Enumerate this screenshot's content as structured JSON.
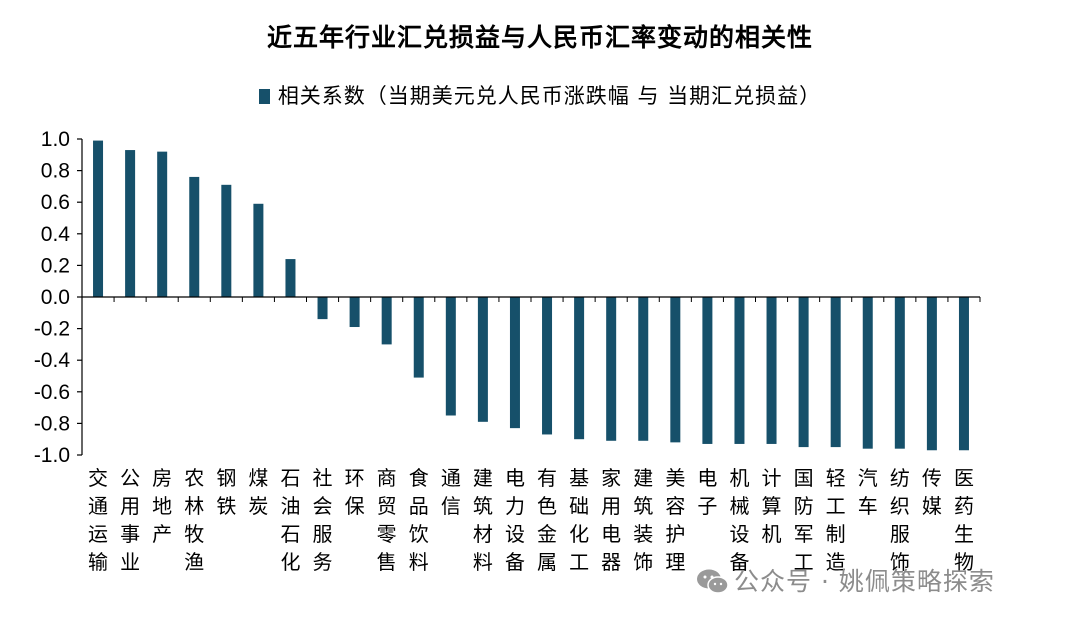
{
  "chart_data": {
    "type": "bar",
    "title": "近五年行业汇兑损益与人民币汇率变动的相关性",
    "legend_position": "top",
    "series": [
      {
        "name": "相关系数（当期美元兑人民币涨跌幅 与 当期汇兑损益）",
        "color": "#16506a",
        "values": [
          0.99,
          0.93,
          0.92,
          0.76,
          0.71,
          0.59,
          0.24,
          -0.14,
          -0.19,
          -0.3,
          -0.51,
          -0.75,
          -0.79,
          -0.83,
          -0.87,
          -0.9,
          -0.91,
          -0.91,
          -0.92,
          -0.93,
          -0.93,
          -0.93,
          -0.95,
          -0.95,
          -0.96,
          -0.96,
          -0.97,
          -0.97
        ]
      }
    ],
    "categories": [
      "交通运输",
      "公用事业",
      "房地产",
      "农林牧渔",
      "钢铁",
      "煤炭",
      "石油石化",
      "社会服务",
      "环保",
      "商贸零售",
      "食品饮料",
      "通信",
      "建筑材料",
      "电力设备",
      "有色金属",
      "基础化工",
      "家用电器",
      "建筑装饰",
      "美容护理",
      "电子",
      "机械设备",
      "计算机",
      "国防军工",
      "轻工制造",
      "汽车",
      "纺织服饰",
      "传媒",
      "医药生物"
    ],
    "yticks": [
      "1.0",
      "0.8",
      "0.6",
      "0.4",
      "0.2",
      "0.0",
      "-0.2",
      "-0.4",
      "-0.6",
      "-0.8",
      "-1.0"
    ],
    "ylim": [
      -1.0,
      1.0
    ],
    "xlabel": "",
    "ylabel": "",
    "grid": false
  },
  "watermark": {
    "text": "公众号 · 姚佩策略探索",
    "icon": "wechat-icon"
  }
}
